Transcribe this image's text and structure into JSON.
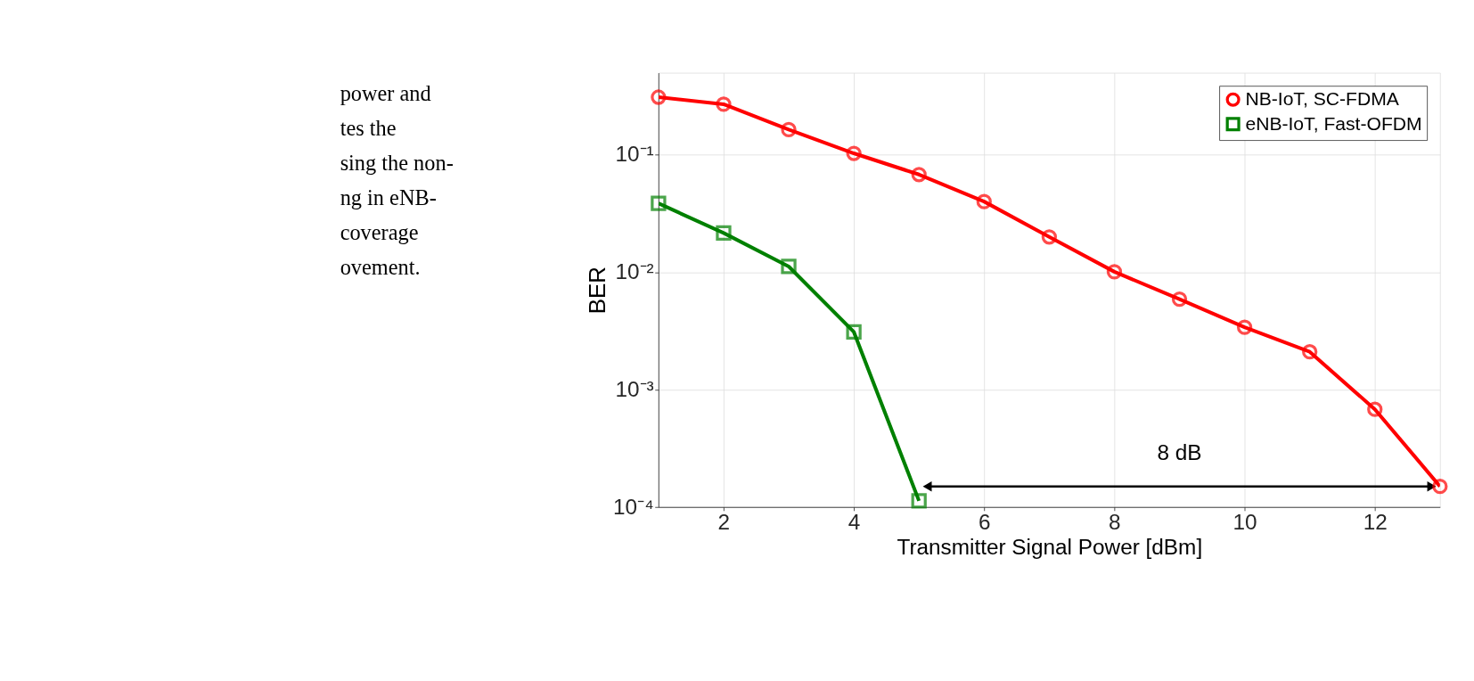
{
  "chart_data": {
    "type": "line",
    "xlabel": "Transmitter Signal Power [dBm]",
    "ylabel": "BER",
    "x": [
      1,
      2,
      3,
      4,
      5,
      6,
      7,
      8,
      9,
      10,
      11,
      12,
      13
    ],
    "series": [
      {
        "name": "NB-IoT, SC-FDMA",
        "color": "#ff0000",
        "marker": "circle",
        "values": [
          0.31,
          0.27,
          0.164,
          0.103,
          0.068,
          0.04,
          0.02,
          0.0101,
          0.0059,
          0.0034,
          0.0021,
          0.00068,
          0.00015
        ]
      },
      {
        "name": "eNB-IoT, Fast-OFDM",
        "color": "#008000",
        "marker": "square",
        "x": [
          1,
          2,
          3,
          4,
          5
        ],
        "values": [
          0.0386,
          0.0216,
          0.0112,
          0.0031,
          0.000113
        ]
      }
    ],
    "log": true,
    "grid": true,
    "legend": "top right",
    "line_style": "solid",
    "xlim": [
      1,
      13
    ],
    "xticks": [
      2,
      4,
      6,
      8,
      10,
      12
    ],
    "ylim": [
      0.0001,
      0.5
    ],
    "yticks": [
      {
        "value": 0.0001,
        "label": "10⁻⁴"
      },
      {
        "value": 0.001,
        "label": "10⁻³"
      },
      {
        "value": 0.01,
        "label": "10⁻²"
      },
      {
        "value": 0.1,
        "label": "10⁻¹"
      }
    ],
    "annotations": [
      "8 dB",
      "power and",
      "tes the",
      "sing the non-",
      "ng in eNB-",
      "coverage",
      "ovement."
    ]
  }
}
